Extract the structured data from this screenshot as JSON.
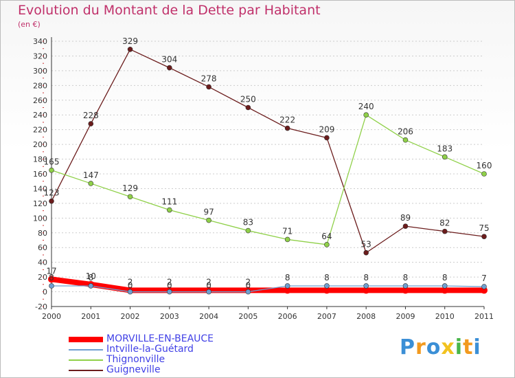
{
  "title": "Evolution du Montant de la Dette par Habitant",
  "subtitle": "(en €)",
  "logo": {
    "letters": [
      "P",
      "r",
      "o",
      "x",
      "i",
      "t",
      "i"
    ],
    "colors": [
      "#3b8fd6",
      "#f29a1f",
      "#3b8fd6",
      "#f2c21f",
      "#49b649",
      "#f29a1f",
      "#3b8fd6"
    ]
  },
  "chart_data": {
    "type": "line",
    "title": "Evolution du Montant de la Dette par Habitant",
    "ylabel": "(en €)",
    "categories": [
      "2000",
      "2001",
      "2002",
      "2003",
      "2004",
      "2005",
      "2006",
      "2007",
      "2008",
      "2009",
      "2010",
      "2011"
    ],
    "ylim": [
      -20,
      340
    ],
    "yticks": [
      "-20",
      "0",
      "20",
      "40",
      "60",
      "80",
      "100",
      "120",
      "140",
      "160",
      "180",
      "200",
      "220",
      "240",
      "260",
      "280",
      "300",
      "320",
      "340"
    ],
    "grid": "horizontal",
    "legend_position": "bottom-left",
    "series": [
      {
        "name": "MORVILLE-EN-BEAUCE",
        "color": "#ff0000",
        "values": [
          17,
          10,
          2,
          2,
          2,
          2,
          2,
          2,
          2,
          2,
          2,
          2
        ],
        "labels": [
          "17",
          "10",
          "2",
          "2",
          "2",
          "2",
          "",
          "",
          "",
          "",
          "",
          ""
        ]
      },
      {
        "name": "Intville-la-Guétard",
        "color": "#6f9fd0",
        "values": [
          8,
          8,
          0,
          0,
          0,
          0,
          8,
          8,
          8,
          8,
          8,
          7
        ],
        "labels": [
          "8",
          "8",
          "0",
          "0",
          "0",
          "0",
          "8",
          "8",
          "8",
          "8",
          "8",
          "7"
        ]
      },
      {
        "name": "Thignonville",
        "color": "#8fd048",
        "values": [
          165,
          147,
          129,
          111,
          97,
          83,
          71,
          64,
          240,
          206,
          183,
          160
        ],
        "labels": [
          "165",
          "147",
          "129",
          "111",
          "97",
          "83",
          "71",
          "64",
          "240",
          "206",
          "183",
          "160"
        ]
      },
      {
        "name": "Guigneville",
        "color": "#6b1c1c",
        "values": [
          123,
          228,
          329,
          304,
          278,
          250,
          222,
          209,
          53,
          89,
          82,
          75
        ],
        "labels": [
          "123",
          "228",
          "329",
          "304",
          "278",
          "250",
          "222",
          "209",
          "53",
          "89",
          "82",
          "75"
        ]
      }
    ]
  }
}
